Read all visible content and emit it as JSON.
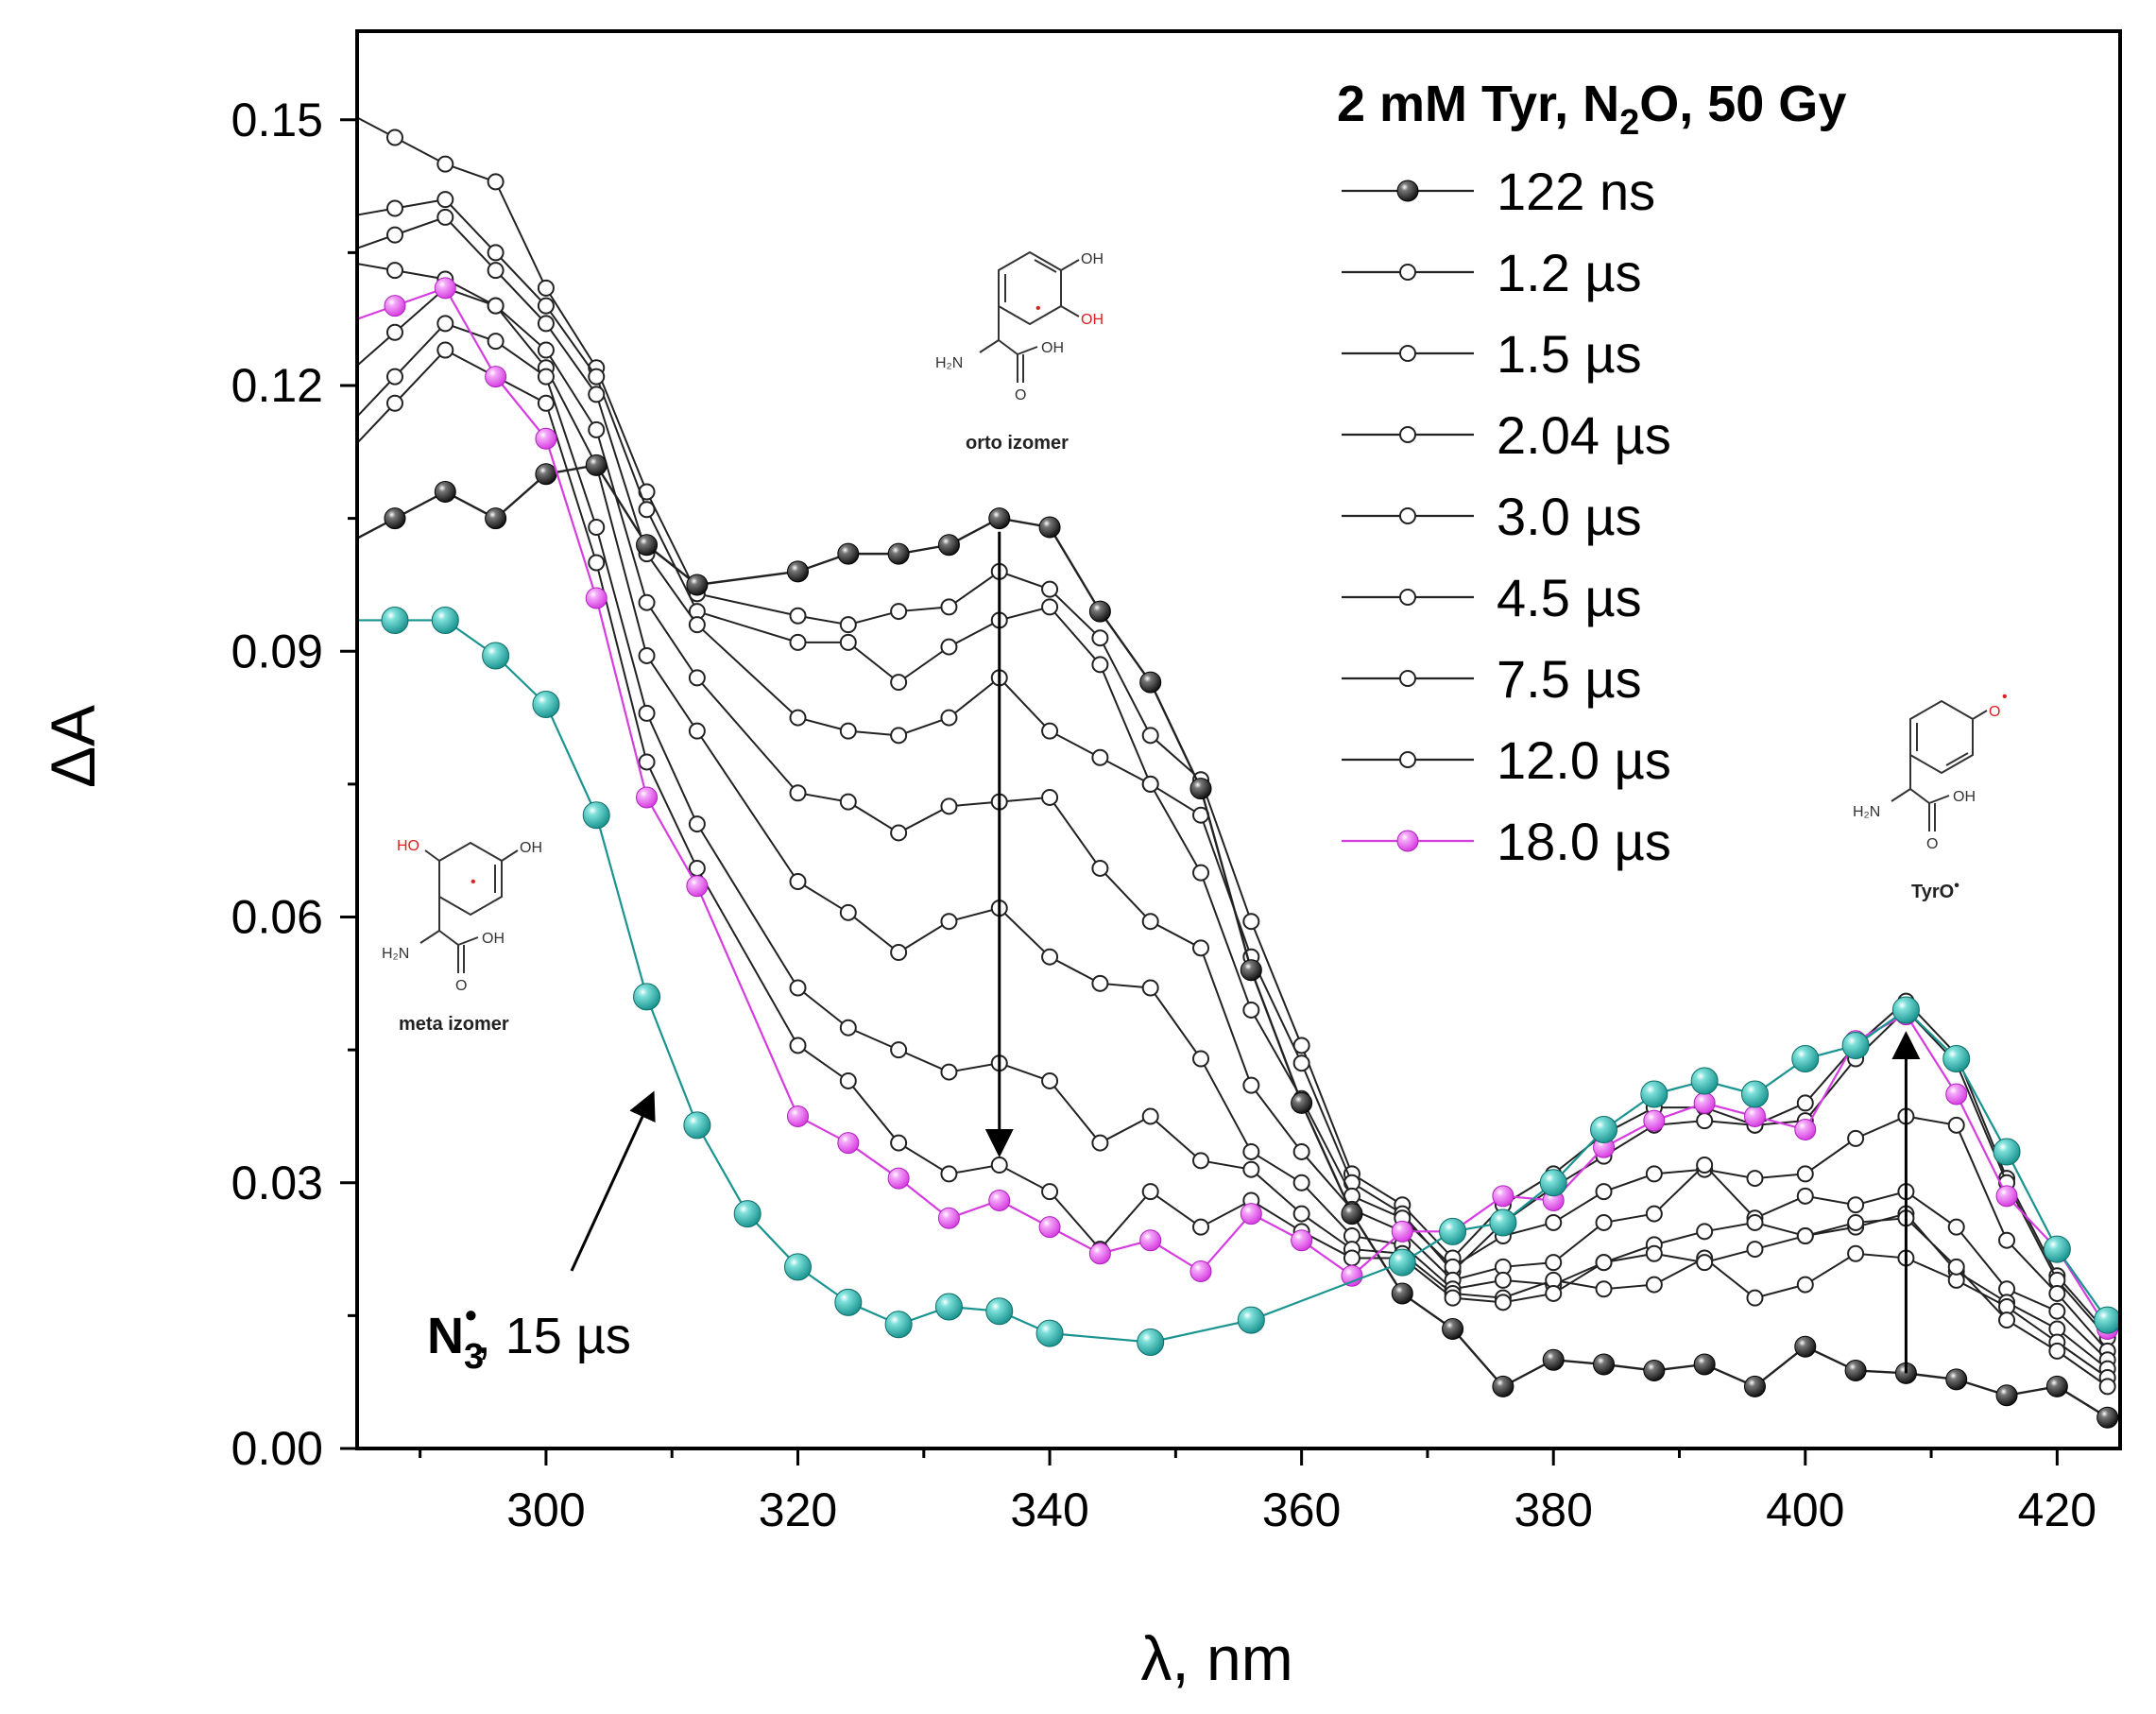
{
  "chart_data": {
    "type": "line",
    "title": "",
    "legend_title": "2 mM Tyr, N₂O, 50 Gy",
    "xlabel": "λ, nm",
    "ylabel": "ΔA",
    "xlim": [
      285,
      425
    ],
    "ylim": [
      0,
      0.16
    ],
    "xticks": [
      300,
      320,
      340,
      360,
      380,
      400,
      420
    ],
    "xtick_labels": [
      "300",
      "320",
      "340",
      "360",
      "380",
      "400",
      "420"
    ],
    "yticks": [
      0.0,
      0.03,
      0.06,
      0.09,
      0.12,
      0.15
    ],
    "ytick_labels": [
      "0.00",
      "0.03",
      "0.06",
      "0.09",
      "0.12",
      "0.15"
    ],
    "x": [
      288,
      292,
      296,
      300,
      304,
      308,
      312,
      320,
      324,
      328,
      332,
      336,
      340,
      344,
      348,
      352,
      356,
      360,
      364,
      368,
      372,
      376,
      380,
      384,
      388,
      392,
      396,
      400,
      404,
      408,
      412,
      416,
      420,
      424
    ],
    "series": [
      {
        "name": "122 ns",
        "style": "black",
        "legend": true,
        "values": [
          0.105,
          0.108,
          0.105,
          0.11,
          0.111,
          0.102,
          0.0975,
          0.099,
          0.101,
          0.101,
          0.102,
          0.105,
          0.104,
          0.0945,
          0.0865,
          0.0745,
          0.054,
          0.039,
          0.0265,
          0.0175,
          0.0135,
          0.007,
          0.01,
          0.0095,
          0.0088,
          0.0095,
          0.007,
          0.0115,
          0.0088,
          0.0085,
          0.0078,
          0.006,
          0.007,
          0.0035
        ]
      },
      {
        "name": "1.2 µs",
        "style": "open",
        "legend": true,
        "values": [
          0.148,
          0.145,
          0.143,
          0.131,
          0.122,
          0.108,
          0.0965,
          0.094,
          0.093,
          0.0945,
          0.095,
          0.099,
          0.097,
          0.0915,
          0.0805,
          0.0755,
          0.0595,
          0.0455,
          0.031,
          0.0275,
          0.0215,
          0.0275,
          0.031,
          0.0355,
          0.0385,
          0.0385,
          0.0365,
          0.039,
          0.0455,
          0.0505,
          0.0445,
          0.0305,
          0.0195,
          0.013
        ]
      },
      {
        "name": "1.5 µs",
        "style": "open",
        "legend": true,
        "values": [
          0.14,
          0.141,
          0.135,
          0.129,
          0.121,
          0.106,
          0.0945,
          0.091,
          0.091,
          0.0865,
          0.0905,
          0.0935,
          0.095,
          0.0885,
          0.075,
          0.0715,
          0.0555,
          0.0435,
          0.03,
          0.0265,
          0.02,
          0.0255,
          0.0295,
          0.033,
          0.0365,
          0.037,
          0.0365,
          0.037,
          0.044,
          0.0495,
          0.0435,
          0.03,
          0.019,
          0.0125
        ]
      },
      {
        "name": "2.04 µs",
        "style": "open",
        "legend": true,
        "values": [
          0.137,
          0.139,
          0.133,
          0.127,
          0.119,
          0.101,
          0.093,
          0.0825,
          0.081,
          0.0805,
          0.0825,
          0.087,
          0.081,
          0.078,
          0.075,
          0.065,
          0.0495,
          0.0395,
          0.0285,
          0.026,
          0.0205,
          0.024,
          0.0255,
          0.029,
          0.031,
          0.0315,
          0.0305,
          0.031,
          0.035,
          0.0375,
          0.0365,
          0.0235,
          0.0175,
          0.011
        ]
      },
      {
        "name": "3.0 µs",
        "style": "open",
        "legend": true,
        "values": [
          0.133,
          0.132,
          0.129,
          0.124,
          0.115,
          0.0955,
          0.087,
          0.074,
          0.073,
          0.0695,
          0.0725,
          0.073,
          0.0735,
          0.0655,
          0.0595,
          0.0565,
          0.041,
          0.0335,
          0.027,
          0.0245,
          0.019,
          0.0205,
          0.021,
          0.0255,
          0.0265,
          0.032,
          0.026,
          0.0285,
          0.0275,
          0.029,
          0.025,
          0.018,
          0.0155,
          0.01
        ]
      },
      {
        "name": "4.5 µs",
        "style": "open",
        "legend": true,
        "values": [
          0.126,
          0.131,
          0.129,
          0.122,
          0.111,
          0.0895,
          0.081,
          0.064,
          0.0605,
          0.056,
          0.0595,
          0.061,
          0.0555,
          0.0525,
          0.052,
          0.044,
          0.0335,
          0.03,
          0.024,
          0.023,
          0.018,
          0.019,
          0.0185,
          0.021,
          0.023,
          0.0245,
          0.0255,
          0.024,
          0.025,
          0.0265,
          0.02,
          0.0165,
          0.0135,
          0.009
        ]
      },
      {
        "name": "7.5 µs",
        "style": "open",
        "legend": true,
        "values": [
          0.121,
          0.127,
          0.125,
          0.121,
          0.104,
          0.083,
          0.0705,
          0.052,
          0.0475,
          0.045,
          0.0425,
          0.0435,
          0.0415,
          0.0345,
          0.0375,
          0.0325,
          0.0315,
          0.0265,
          0.0225,
          0.022,
          0.0175,
          0.017,
          0.019,
          0.018,
          0.0185,
          0.0215,
          0.017,
          0.0185,
          0.022,
          0.0215,
          0.019,
          0.016,
          0.012,
          0.008
        ]
      },
      {
        "name": "12.0 µs",
        "style": "open",
        "legend": true,
        "values": [
          0.118,
          0.124,
          0.121,
          0.118,
          0.1,
          0.0775,
          0.0655,
          0.0455,
          0.0415,
          0.0345,
          0.031,
          0.032,
          0.029,
          0.0225,
          0.029,
          0.025,
          0.028,
          0.0245,
          0.0215,
          0.0215,
          0.017,
          0.0165,
          0.0175,
          0.021,
          0.022,
          0.021,
          0.0225,
          0.024,
          0.0255,
          0.026,
          0.0205,
          0.0145,
          0.011,
          0.007
        ]
      },
      {
        "name": "18.0 µs",
        "style": "magenta",
        "legend": true,
        "values": [
          0.129,
          0.131,
          0.121,
          0.114,
          0.096,
          0.0735,
          0.0635,
          0.0375,
          0.0345,
          0.0305,
          0.026,
          0.028,
          0.025,
          0.022,
          0.0235,
          0.02,
          0.0265,
          0.0235,
          0.0195,
          0.0245,
          0.0245,
          0.0285,
          0.028,
          0.034,
          0.037,
          0.039,
          0.0375,
          0.036,
          0.046,
          0.049,
          0.04,
          0.0285,
          0.0225,
          0.0135
        ]
      },
      {
        "name": "N₃•, 15 µs",
        "style": "teal",
        "legend": false,
        "x": [
          288,
          292,
          296,
          300,
          304,
          308,
          312,
          316,
          320,
          324,
          328,
          332,
          336,
          340,
          348,
          356,
          368,
          372,
          376,
          380,
          384,
          388,
          392,
          396,
          400,
          404,
          408,
          412,
          416,
          420,
          424
        ],
        "values": [
          0.0935,
          0.0935,
          0.0895,
          0.084,
          0.0715,
          0.051,
          0.0365,
          0.0265,
          0.0205,
          0.0165,
          0.014,
          0.016,
          0.0155,
          0.013,
          0.012,
          0.0145,
          0.021,
          0.0245,
          0.0255,
          0.03,
          0.036,
          0.04,
          0.0415,
          0.04,
          0.044,
          0.0455,
          0.0495,
          0.044,
          0.0335,
          0.0225,
          0.0145
        ]
      }
    ],
    "legend": {
      "title": "2 mM Tyr, N₂O, 50 Gy",
      "items": [
        "122 ns",
        "1.2 µs",
        "1.5 µs",
        "2.04 µs",
        "3.0 µs",
        "4.5 µs",
        "7.5 µs",
        "12.0 µs",
        "18.0 µs"
      ],
      "position": "top-right"
    },
    "annotations": {
      "n3_label": "N₃•, 15 µs",
      "orto_label": "orto izomer",
      "meta_label": "meta izomer",
      "tyro_label": "TyrO•"
    },
    "colors": {
      "black": "#111111",
      "magenta": "#d63ce0",
      "teal": "#1a9490",
      "line": "#222222"
    }
  },
  "text": {
    "y_title": "ΔA",
    "x_title": "λ, nm",
    "legend_title_main": "2 mM Tyr, N",
    "legend_title_sub": "2",
    "legend_title_rest": "O, 50 Gy",
    "n3_main": "N",
    "n3_sub": "3",
    "n3_sup": "•",
    "n3_rest": ", 15 µs",
    "orto_label": "orto izomer",
    "meta_label": "meta izomer",
    "tyro_main": "TyrO",
    "tyro_sup": "•",
    "atom_oh": "OH",
    "atom_ho": "HO",
    "atom_h2n": "H₂N",
    "atom_o": "O",
    "dot": "•"
  }
}
